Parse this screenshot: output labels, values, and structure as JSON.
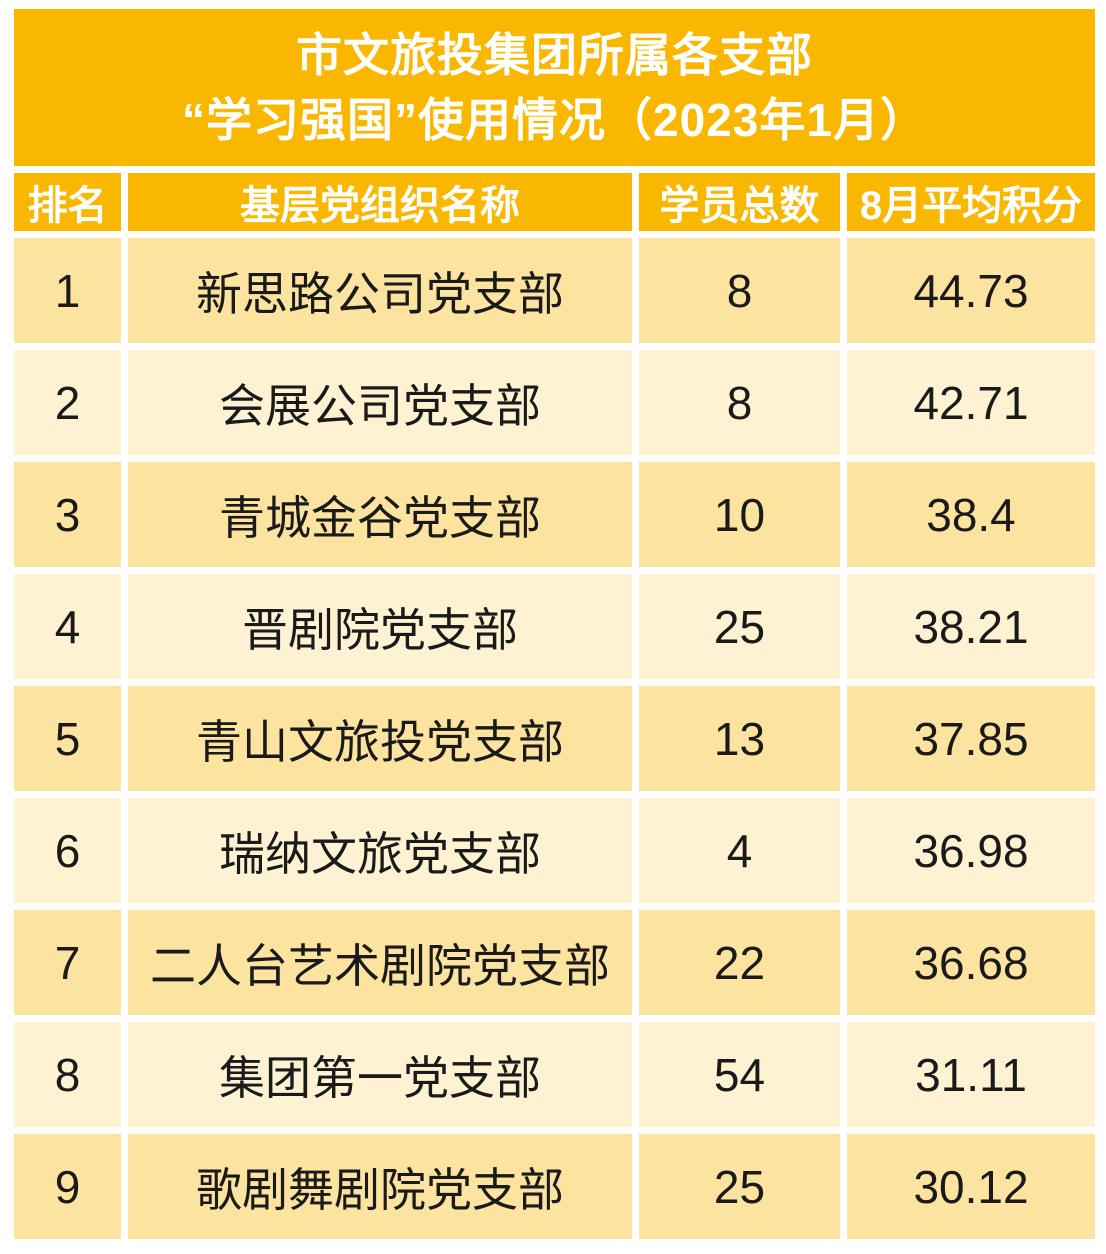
{
  "colors": {
    "accent_orange": "#FAB700",
    "band_dark": "#FCE3A0",
    "band_light": "#FEF2D2",
    "header_text": "#FFFFFF",
    "body_text": "#1A1A1A",
    "page_background": "#FFFFFF"
  },
  "title": {
    "line1": "市文旅投集团所属各支部",
    "line2": "“学习强国”使用情况（2023年1月）"
  },
  "table": {
    "columns": [
      {
        "key": "rank",
        "label": "排名"
      },
      {
        "key": "org",
        "label": "基层党组织名称"
      },
      {
        "key": "members",
        "label": "学员总数"
      },
      {
        "key": "score",
        "label": "8月平均积分"
      }
    ],
    "rows": [
      {
        "rank": "1",
        "org": "新思路公司党支部",
        "members": "8",
        "score": "44.73"
      },
      {
        "rank": "2",
        "org": "会展公司党支部",
        "members": "8",
        "score": "42.71"
      },
      {
        "rank": "3",
        "org": "青城金谷党支部",
        "members": "10",
        "score": "38.4"
      },
      {
        "rank": "4",
        "org": "晋剧院党支部",
        "members": "25",
        "score": "38.21"
      },
      {
        "rank": "5",
        "org": "青山文旅投党支部",
        "members": "13",
        "score": "37.85"
      },
      {
        "rank": "6",
        "org": "瑞纳文旅党支部",
        "members": "4",
        "score": "36.98"
      },
      {
        "rank": "7",
        "org": "二人台艺术剧院党支部",
        "members": "22",
        "score": "36.68"
      },
      {
        "rank": "8",
        "org": "集团第一党支部",
        "members": "54",
        "score": "31.11"
      },
      {
        "rank": "9",
        "org": "歌剧舞剧院党支部",
        "members": "25",
        "score": "30.12"
      }
    ]
  },
  "chart_data": {
    "type": "table",
    "title": "市文旅投集团所属各支部“学习强国”使用情况（2023年1月）",
    "columns": [
      "排名",
      "基层党组织名称",
      "学员总数",
      "8月平均积分"
    ],
    "rows": [
      [
        1,
        "新思路公司党支部",
        8,
        44.73
      ],
      [
        2,
        "会展公司党支部",
        8,
        42.71
      ],
      [
        3,
        "青城金谷党支部",
        10,
        38.4
      ],
      [
        4,
        "晋剧院党支部",
        25,
        38.21
      ],
      [
        5,
        "青山文旅投党支部",
        13,
        37.85
      ],
      [
        6,
        "瑞纳文旅党支部",
        4,
        36.98
      ],
      [
        7,
        "二人台艺术剧院党支部",
        22,
        36.68
      ],
      [
        8,
        "集团第一党支部",
        54,
        31.11
      ],
      [
        9,
        "歌剧舞剧院党支部",
        25,
        30.12
      ]
    ]
  }
}
